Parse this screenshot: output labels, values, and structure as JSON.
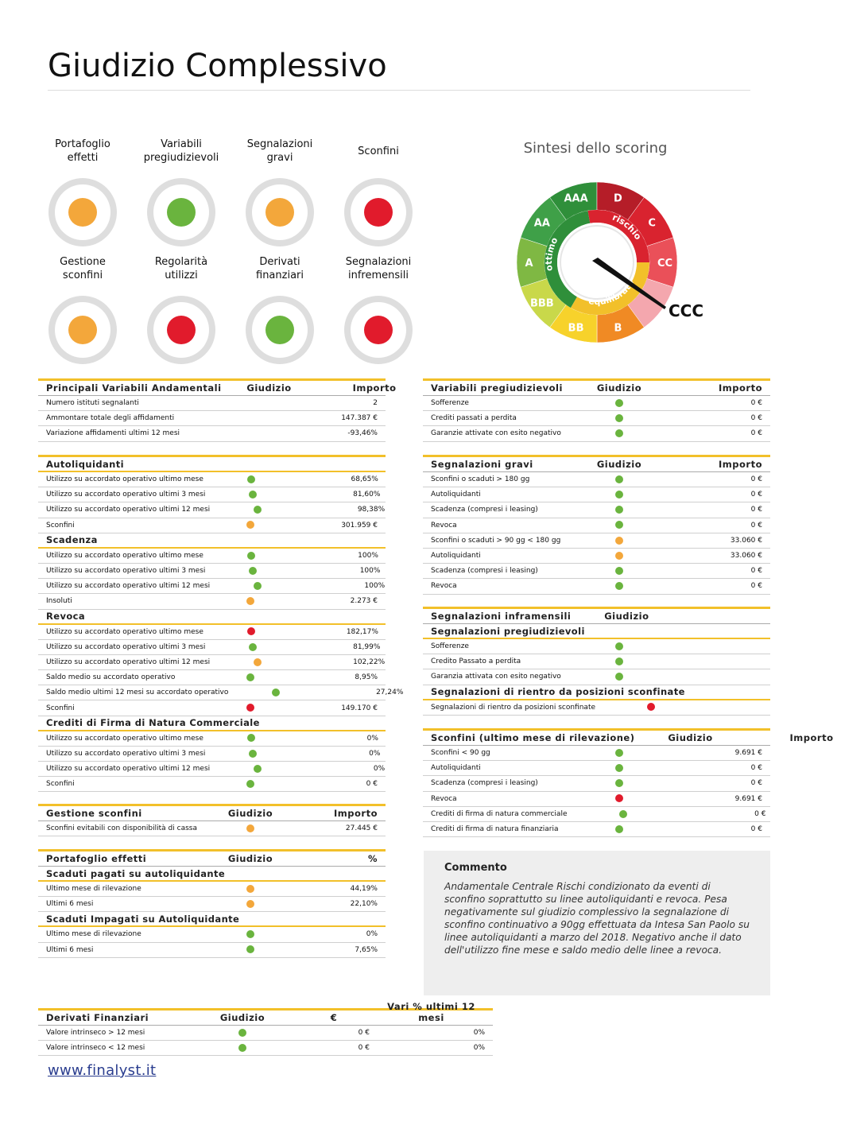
{
  "title": "Giudizio Complessivo",
  "colors": {
    "green": "#6ab43e",
    "orange": "#f3a73b",
    "red": "#e11b2c",
    "accent": "#f2c02a"
  },
  "indicators": [
    {
      "label": "Portafoglio\neffetti",
      "status": "orange"
    },
    {
      "label": "Variabili\npregiudizievoli",
      "status": "green"
    },
    {
      "label": "Segnalazioni\ngravi",
      "status": "orange"
    },
    {
      "label": "Sconfini",
      "status": "red"
    },
    {
      "label": "Gestione\nsconfini",
      "status": "orange"
    },
    {
      "label": "Regolarità\nutilizzi",
      "status": "red"
    },
    {
      "label": "Derivati\nfinanziari",
      "status": "green"
    },
    {
      "label": "Segnalazioni\ninfremensili",
      "status": "red"
    }
  ],
  "scoring": {
    "title": "Sintesi dello scoring",
    "ratings": [
      "AAA",
      "D",
      "C",
      "CC",
      "CCC",
      "B",
      "BB",
      "BBB",
      "A",
      "AA"
    ],
    "zones": {
      "left": "ottimo",
      "bottom": "equilibrato",
      "right": "rischio"
    },
    "result": "CCC"
  },
  "tables": {
    "principali": {
      "headers": [
        "Principali Variabili Andamentali",
        "Giudizio",
        "Importo"
      ],
      "rows": [
        [
          "Numero istituti segnalanti",
          "",
          "2"
        ],
        [
          "Ammontare totale degli affidamenti",
          "",
          "147.387 €"
        ],
        [
          "Variazione affidamenti ultimi 12 mesi",
          "",
          "-93,46%"
        ]
      ]
    },
    "auto": {
      "sections": [
        {
          "title": "Autoliquidanti",
          "rows": [
            [
              "Utilizzo su accordato operativo ultimo mese",
              "green",
              "68,65%"
            ],
            [
              "Utilizzo su accordato operativo ultimi 3 mesi",
              "green",
              "81,60%"
            ],
            [
              "Utilizzo su accordato operativo ultimi 12 mesi",
              "green",
              "98,38%"
            ],
            [
              "Sconfini",
              "orange",
              "301.959 €"
            ]
          ]
        },
        {
          "title": "Scadenza",
          "rows": [
            [
              "Utilizzo su accordato operativo ultimo mese",
              "green",
              "100%"
            ],
            [
              "Utilizzo su accordato operativo ultimi 3 mesi",
              "green",
              "100%"
            ],
            [
              "Utilizzo su accordato operativo ultimi 12 mesi",
              "green",
              "100%"
            ],
            [
              "Insoluti",
              "orange",
              "2.273 €"
            ]
          ]
        },
        {
          "title": "Revoca",
          "rows": [
            [
              "Utilizzo su accordato operativo ultimo mese",
              "red",
              "182,17%"
            ],
            [
              "Utilizzo su accordato operativo ultimi 3 mesi",
              "green",
              "81,99%"
            ],
            [
              "Utilizzo su accordato operativo ultimi 12 mesi",
              "orange",
              "102,22%"
            ],
            [
              "Saldo medio su accordato operativo",
              "green",
              "8,95%"
            ],
            [
              "Saldo medio ultimi 12 mesi su accordato operativo",
              "green",
              "27,24%"
            ],
            [
              "Sconfini",
              "red",
              "149.170 €"
            ]
          ]
        },
        {
          "title": "Crediti di Firma di Natura Commerciale",
          "rows": [
            [
              "Utilizzo su accordato operativo ultimo mese",
              "green",
              "0%"
            ],
            [
              "Utilizzo su accordato operativo ultimi 3 mesi",
              "green",
              "0%"
            ],
            [
              "Utilizzo su accordato operativo ultimi 12 mesi",
              "green",
              "0%"
            ],
            [
              "Sconfini",
              "green",
              "0 €"
            ]
          ]
        }
      ]
    },
    "gestione": {
      "headers": [
        "Gestione sconfini",
        "Giudizio",
        "Importo"
      ],
      "rows": [
        [
          "Sconfini evitabili con disponibilità di cassa",
          "orange",
          "27.445 €"
        ]
      ]
    },
    "portafoglio": {
      "headers": [
        "Portafoglio effetti",
        "Giudizio",
        "%"
      ],
      "sections": [
        {
          "title": "Scaduti pagati su autoliquidante",
          "rows": [
            [
              "Ultimo mese di rilevazione",
              "orange",
              "44,19%"
            ],
            [
              "Ultimi 6 mesi",
              "orange",
              "22,10%"
            ]
          ]
        },
        {
          "title": "Scaduti Impagati su Autoliquidante",
          "rows": [
            [
              "Ultimo mese di rilevazione",
              "green",
              "0%"
            ],
            [
              "Ultimi 6 mesi",
              "green",
              "7,65%"
            ]
          ]
        }
      ]
    },
    "derivati": {
      "headers": [
        "Derivati Finanziari",
        "Giudizio",
        "€",
        "Vari % ultimi 12 mesi"
      ],
      "rows": [
        [
          "Valore intrinseco > 12 mesi",
          "green",
          "0 €",
          "0%"
        ],
        [
          "Valore intrinseco < 12 mesi",
          "green",
          "0 €",
          "0%"
        ]
      ]
    },
    "pregiudizievoli": {
      "headers": [
        "Variabili pregiudizievoli",
        "Giudizio",
        "Importo"
      ],
      "rows": [
        [
          "Sofferenze",
          "green",
          "0 €"
        ],
        [
          "Crediti passati a perdita",
          "green",
          "0 €"
        ],
        [
          "Garanzie attivate con esito negativo",
          "green",
          "0 €"
        ]
      ]
    },
    "gravi": {
      "headers": [
        "Segnalazioni gravi",
        "Giudizio",
        "Importo"
      ],
      "rows": [
        [
          "Sconfini o scaduti > 180 gg",
          "green",
          "0 €"
        ],
        [
          "Autoliquidanti",
          "green",
          "0 €"
        ],
        [
          "Scadenza (compresi i leasing)",
          "green",
          "0 €"
        ],
        [
          "Revoca",
          "green",
          "0 €"
        ],
        [
          "Sconfini o scaduti > 90 gg < 180 gg",
          "orange",
          "33.060 €"
        ],
        [
          "Autoliquidanti",
          "orange",
          "33.060 €"
        ],
        [
          "Scadenza (compresi i leasing)",
          "green",
          "0 €"
        ],
        [
          "Revoca",
          "green",
          "0 €"
        ]
      ]
    },
    "infra": {
      "headers": [
        "Segnalazioni inframensili",
        "Giudizio",
        ""
      ],
      "sections": [
        {
          "title": "Segnalazioni pregiudizievoli",
          "rows": [
            [
              "Sofferenze",
              "green",
              ""
            ],
            [
              "Credito Passato a perdita",
              "green",
              ""
            ],
            [
              "Garanzia attivata con esito negativo",
              "green",
              ""
            ]
          ]
        },
        {
          "title": "Segnalazioni di rientro da posizioni sconfinate",
          "rows": [
            [
              "Segnalazioni di rientro da posizioni sconfinate",
              "red",
              ""
            ]
          ]
        }
      ]
    },
    "sconfini": {
      "headers": [
        "Sconfini (ultimo mese di rilevazione)",
        "Giudizio",
        "Importo"
      ],
      "rows": [
        [
          "Sconfini < 90 gg",
          "green",
          "9.691 €"
        ],
        [
          "Autoliquidanti",
          "green",
          "0 €"
        ],
        [
          "Scadenza (compresi i leasing)",
          "green",
          "0 €"
        ],
        [
          "Revoca",
          "red",
          "9.691 €"
        ],
        [
          "Crediti di firma di natura commerciale",
          "green",
          "0 €"
        ],
        [
          "Crediti di firma di natura finanziaria",
          "green",
          "0 €"
        ]
      ]
    }
  },
  "comment": {
    "title": "Commento",
    "text": "Andamentale Centrale Rischi condizionato da eventi di sconfino soprattutto su linee autoliquidanti e revoca. Pesa negativamente sul giudizio complessivo la segnalazione di sconfino continuativo a 90gg effettuata da Intesa San Paolo su linee autoliquidanti a marzo del 2018. Negativo anche il dato dell'utilizzo fine mese e saldo medio delle linee a revoca."
  },
  "footer": "www.finalyst.it"
}
